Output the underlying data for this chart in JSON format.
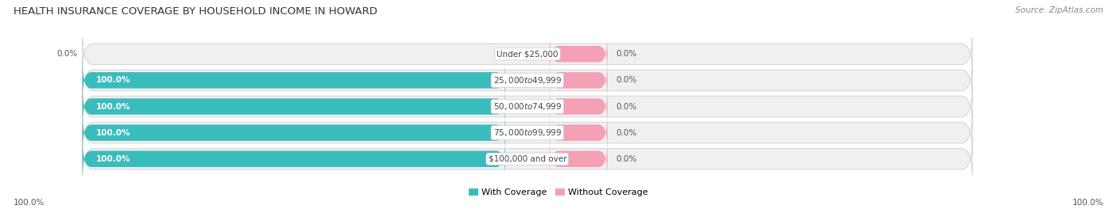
{
  "title": "HEALTH INSURANCE COVERAGE BY HOUSEHOLD INCOME IN HOWARD",
  "source": "Source: ZipAtlas.com",
  "categories": [
    "Under $25,000",
    "$25,000 to $49,999",
    "$50,000 to $74,999",
    "$75,000 to $99,999",
    "$100,000 and over"
  ],
  "with_coverage": [
    0.0,
    100.0,
    100.0,
    100.0,
    100.0
  ],
  "without_coverage": [
    0.0,
    0.0,
    0.0,
    0.0,
    0.0
  ],
  "color_with": "#3bbcbc",
  "color_without": "#f4a0b5",
  "color_bg_bar": "#f0f0f2",
  "background_color": "#ffffff",
  "title_fontsize": 9.5,
  "source_fontsize": 7.5,
  "value_fontsize": 7.5,
  "cat_fontsize": 7.5,
  "legend_fontsize": 8,
  "bottom_left_label": "100.0%",
  "bottom_right_label": "100.0%"
}
